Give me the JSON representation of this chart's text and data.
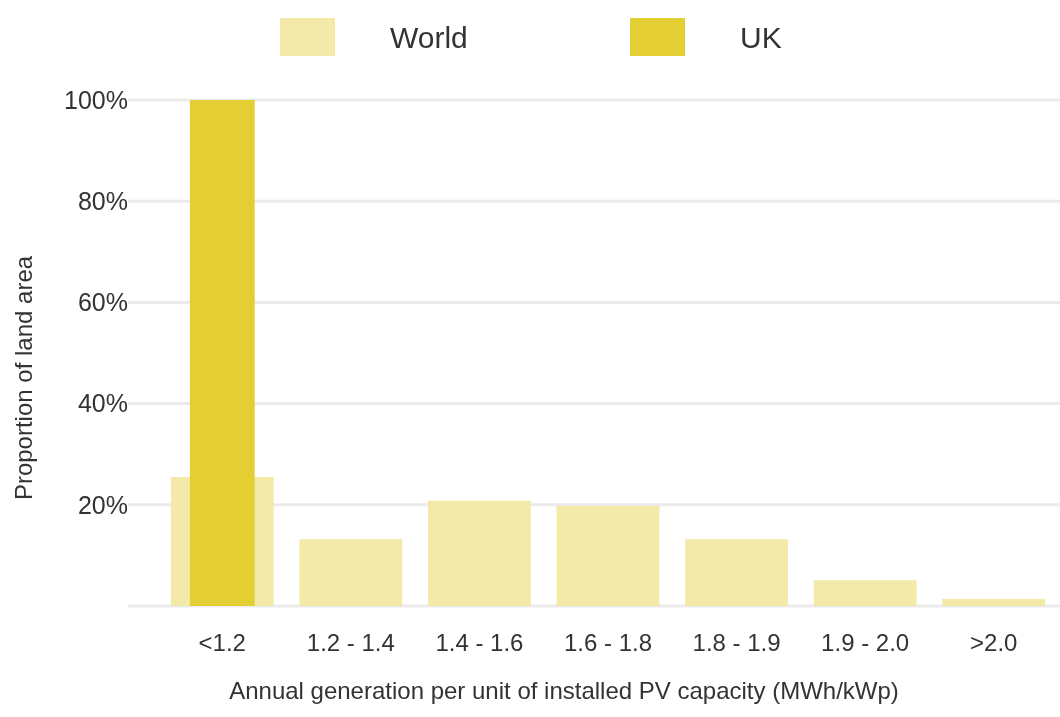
{
  "chart_data": {
    "type": "bar",
    "xlabel": "Annual generation per unit of installed PV capacity (MWh/kWp)",
    "ylabel": "Proportion of land area",
    "categories": [
      "<1.2",
      "1.2 - 1.4",
      "1.4 - 1.6",
      "1.6 - 1.8",
      "1.8 - 1.9",
      "1.9 - 2.0",
      ">2.0"
    ],
    "series": [
      {
        "name": "World",
        "color": "#f3eaa9",
        "values": [
          25.5,
          13.2,
          20.8,
          19.8,
          13.2,
          5.1,
          1.4
        ]
      },
      {
        "name": "UK",
        "color": "#e3cf33",
        "values": [
          100,
          null,
          null,
          null,
          null,
          null,
          null
        ]
      }
    ],
    "ylim": [
      0,
      100
    ],
    "yticks": [
      {
        "value": 0,
        "label": null
      },
      {
        "value": 20,
        "label": "20%"
      },
      {
        "value": 40,
        "label": "40%"
      },
      {
        "value": 60,
        "label": "60%"
      },
      {
        "value": 80,
        "label": "80%"
      },
      {
        "value": 100,
        "label": "100%"
      }
    ],
    "grid": "y",
    "legend": "top"
  }
}
